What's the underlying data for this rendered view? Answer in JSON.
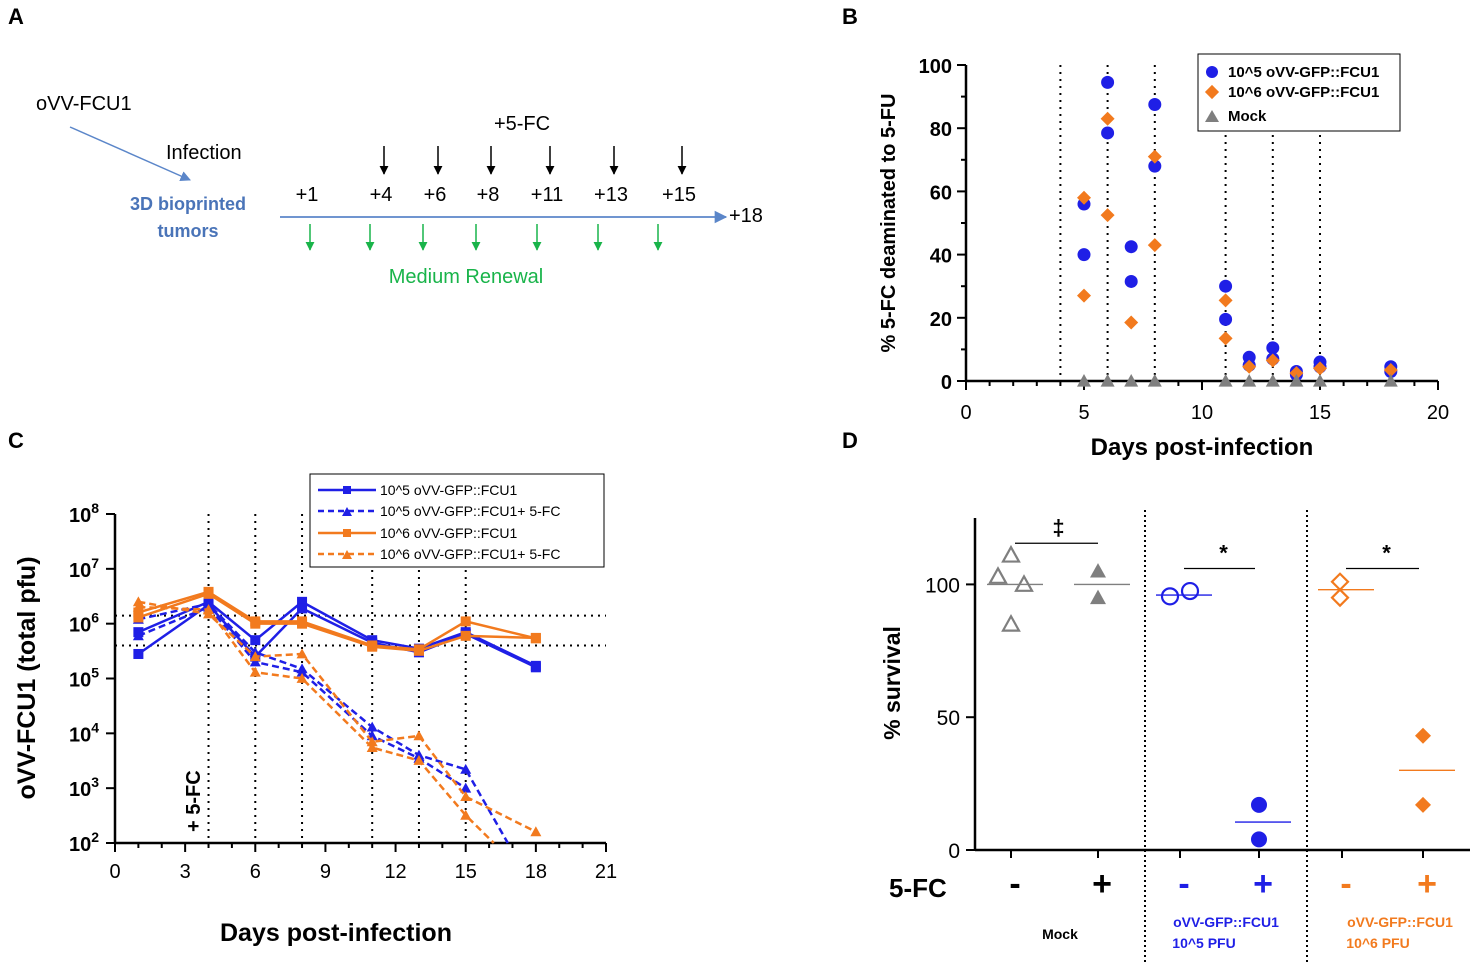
{
  "panel_letters": [
    "A",
    "B",
    "C",
    "D"
  ],
  "colors": {
    "blue": "#1f1fe6",
    "orange": "#f27a1e",
    "gray": "#7f7f7f",
    "green": "#19b44a",
    "timeline": "#5b86c9",
    "label_blue": "#4a74b8"
  },
  "panel_a": {
    "virus_label": "oVV-FCU1",
    "infection_label": "Infection",
    "tumor_label_line1": "3D bioprinted",
    "tumor_label_line2": "tumors",
    "drug_label": "+5-FC",
    "drug_days": [
      "+4",
      "+6",
      "+8",
      "+11",
      "+13",
      "+15"
    ],
    "timepoints": [
      "+1",
      "+4",
      "+6",
      "+8",
      "+11",
      "+13",
      "+15"
    ],
    "end_label": "+18",
    "renewal_label": "Medium Renewal",
    "renewal_count": 7
  },
  "chart_data": [
    {
      "id": "B",
      "type": "scatter",
      "xlabel": "Days post-infection",
      "ylabel": "% 5-FC deaminated to 5-FU",
      "xlim": [
        0,
        20
      ],
      "ylim": [
        0,
        100
      ],
      "xticks": [
        "0",
        "5",
        "10",
        "15",
        "20"
      ],
      "yticks": [
        "0",
        "20",
        "40",
        "60",
        "80",
        "100"
      ],
      "vlines": [
        4,
        6,
        8,
        11,
        13,
        15
      ],
      "legend": [
        "10^5 oVV-GFP::FCU1",
        "10^6 oVV-GFP::FCU1",
        "Mock"
      ],
      "series": [
        {
          "name": "10^5 oVV-GFP::FCU1",
          "marker": "circle",
          "color": "#1f1fe6",
          "points": [
            [
              5,
              56
            ],
            [
              5,
              40
            ],
            [
              6,
              94.5
            ],
            [
              6,
              78.5
            ],
            [
              7,
              42.5
            ],
            [
              7,
              31.5
            ],
            [
              8,
              87.5
            ],
            [
              8,
              68
            ],
            [
              11,
              30
            ],
            [
              11,
              19.5
            ],
            [
              12,
              7.5
            ],
            [
              12,
              5
            ],
            [
              13,
              10.5
            ],
            [
              13,
              7
            ],
            [
              14,
              3
            ],
            [
              14,
              2
            ],
            [
              15,
              6
            ],
            [
              15,
              4.5
            ],
            [
              18,
              4.5
            ],
            [
              18,
              3
            ]
          ]
        },
        {
          "name": "10^6 oVV-GFP::FCU1",
          "marker": "diamond",
          "color": "#f27a1e",
          "points": [
            [
              5,
              58
            ],
            [
              5,
              27
            ],
            [
              6,
              83
            ],
            [
              6,
              52.5
            ],
            [
              7,
              18.5
            ],
            [
              8,
              71
            ],
            [
              8,
              43
            ],
            [
              11,
              25.5
            ],
            [
              11,
              13.5
            ],
            [
              12,
              4.5
            ],
            [
              13,
              6.5
            ],
            [
              14,
              2.5
            ],
            [
              15,
              4
            ],
            [
              18,
              3.5
            ]
          ]
        },
        {
          "name": "Mock",
          "marker": "triangle",
          "color": "#7f7f7f",
          "points": [
            [
              5,
              0
            ],
            [
              6,
              0
            ],
            [
              7,
              0
            ],
            [
              8,
              0
            ],
            [
              11,
              0
            ],
            [
              12,
              0
            ],
            [
              13,
              0
            ],
            [
              14,
              0
            ],
            [
              15,
              0
            ],
            [
              18,
              0
            ]
          ]
        }
      ]
    },
    {
      "id": "C",
      "type": "line",
      "xlabel": "Days post-infection",
      "ylabel": "oVV-FCU1 (total pfu)",
      "yscale": "log",
      "xlim": [
        0,
        21
      ],
      "ylim": [
        100,
        100000000
      ],
      "xticks": [
        "0",
        "3",
        "6",
        "9",
        "12",
        "15",
        "18",
        "21"
      ],
      "ytick_base": "10",
      "ytick_exps": [
        "2",
        "3",
        "4",
        "5",
        "6",
        "7",
        "8"
      ],
      "vlines": [
        4,
        6,
        8,
        11,
        13,
        15
      ],
      "hlines": [
        1400000,
        400000
      ],
      "annotation": "+ 5-FC",
      "legend": [
        "10^5 oVV-GFP::FCU1",
        "10^5 oVV-GFP::FCU1+ 5-FC",
        "10^6 oVV-GFP::FCU1",
        "10^6 oVV-GFP::FCU1+ 5-FC"
      ],
      "series": [
        {
          "name": "10^5 oVV-GFP::FCU1",
          "color": "#1f1fe6",
          "dash": false,
          "marker": "square",
          "x": [
            1,
            4,
            6,
            8,
            11,
            13,
            15,
            18
          ],
          "y": [
            700000,
            2500000,
            500000,
            2500000,
            500000,
            350000,
            700000,
            170000
          ]
        },
        {
          "name": "10^5 oVV-GFP::FCU1 (replicate)",
          "color": "#1f1fe6",
          "dash": false,
          "marker": "square",
          "x": [
            1,
            4,
            6,
            8,
            11,
            13,
            15,
            18
          ],
          "y": [
            280000,
            2200000,
            250000,
            1900000,
            450000,
            300000,
            650000,
            160000
          ]
        },
        {
          "name": "10^5 oVV-GFP::FCU1+ 5-FC",
          "color": "#1f1fe6",
          "dash": true,
          "marker": "triangle",
          "x": [
            1,
            4,
            6,
            8,
            11,
            13,
            15,
            16.8
          ],
          "y": [
            1200000,
            2300000,
            300000,
            150000,
            13000,
            4000,
            2200,
            100
          ]
        },
        {
          "name": "10^5 oVV-GFP::FCU1+ 5-FC (replicate)",
          "color": "#1f1fe6",
          "dash": true,
          "marker": "triangle",
          "x": [
            1,
            4,
            6,
            8,
            11,
            13,
            15
          ],
          "y": [
            600000,
            2000000,
            200000,
            130000,
            9000,
            3500,
            1000
          ]
        },
        {
          "name": "10^6 oVV-GFP::FCU1",
          "color": "#f27a1e",
          "dash": false,
          "marker": "square",
          "x": [
            1,
            4,
            6,
            8,
            11,
            13,
            15,
            18
          ],
          "y": [
            1600000,
            3800000,
            1100000,
            1100000,
            400000,
            340000,
            1100000,
            540000
          ]
        },
        {
          "name": "10^6 oVV-GFP::FCU1 (replicate)",
          "color": "#f27a1e",
          "dash": false,
          "marker": "square",
          "x": [
            1,
            4,
            6,
            8,
            11,
            13,
            15,
            18
          ],
          "y": [
            1300000,
            3500000,
            1000000,
            1000000,
            380000,
            320000,
            600000,
            550000
          ]
        },
        {
          "name": "10^6 oVV-GFP::FCU1+ 5-FC",
          "color": "#f27a1e",
          "dash": true,
          "marker": "triangle",
          "x": [
            1,
            4,
            6,
            8,
            11,
            13,
            15,
            18
          ],
          "y": [
            2500000,
            1500000,
            250000,
            280000,
            7000,
            9000,
            700,
            160
          ]
        },
        {
          "name": "10^6 oVV-GFP::FCU1+ 5-FC (replicate)",
          "color": "#f27a1e",
          "dash": true,
          "marker": "triangle",
          "x": [
            1,
            4,
            6,
            8,
            11,
            13,
            15,
            16.2
          ],
          "y": [
            2000000,
            1800000,
            130000,
            100000,
            5500,
            3200,
            320,
            100
          ]
        }
      ]
    },
    {
      "id": "D",
      "type": "scatter",
      "ylabel": "% survival",
      "ylim": [
        0,
        125
      ],
      "yticks": [
        "0",
        "50",
        "100"
      ],
      "row_label": "5-FC",
      "groups": [
        {
          "label": "Mock",
          "color": "#7f7f7f",
          "sig": "‡",
          "conditions": [
            {
              "sign": "-",
              "marker": "triangle-open",
              "mean": 100,
              "values": [
                111,
                103,
                100,
                85
              ]
            },
            {
              "sign": "+",
              "marker": "triangle",
              "mean": 100,
              "values": [
                105,
                95
              ]
            }
          ]
        },
        {
          "label_line1": "oVV-GFP::FCU1",
          "label_line2": "10^5 PFU",
          "color": "#1f1fe6",
          "sig": "*",
          "conditions": [
            {
              "sign": "-",
              "marker": "circle-open",
              "mean": 96,
              "values": [
                95.5,
                97.5
              ]
            },
            {
              "sign": "+",
              "marker": "circle",
              "mean": 10.5,
              "values": [
                17,
                4
              ]
            }
          ]
        },
        {
          "label_line1": "oVV-GFP::FCU1",
          "label_line2": "10^6 PFU",
          "color": "#f27a1e",
          "sig": "*",
          "conditions": [
            {
              "sign": "-",
              "marker": "diamond-open",
              "mean": 98,
              "values": [
                101,
                95
              ]
            },
            {
              "sign": "+",
              "marker": "diamond",
              "mean": 30,
              "values": [
                43,
                17
              ]
            }
          ]
        }
      ]
    }
  ]
}
